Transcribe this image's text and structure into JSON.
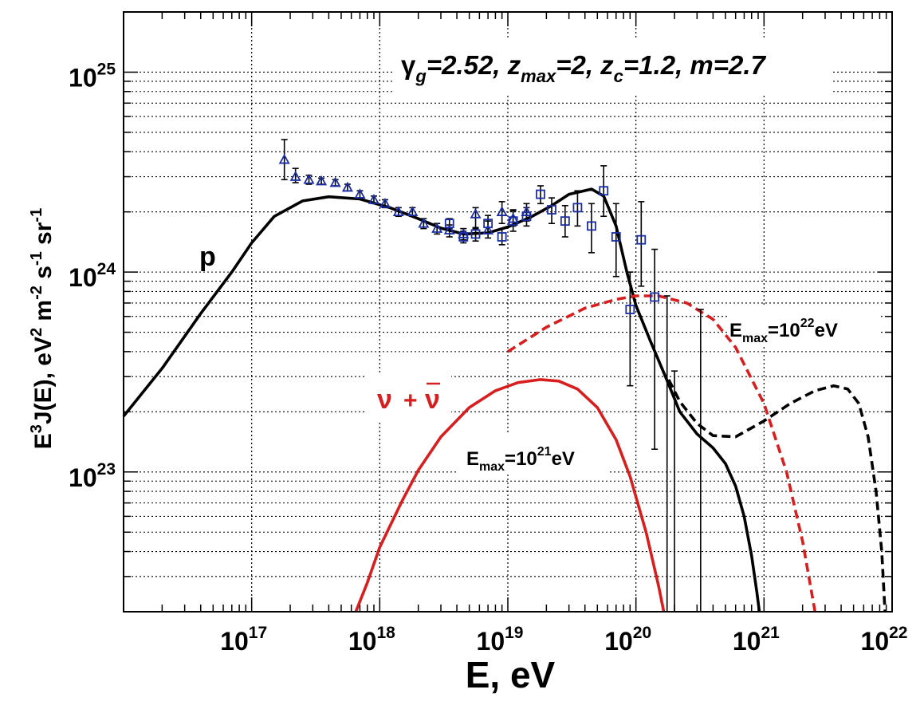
{
  "chart_data": {
    "type": "line",
    "log_x": true,
    "log_y": true,
    "xlim": [
      1e+16,
      1e+22
    ],
    "ylim": [
      2e+22,
      2e+25
    ],
    "grid": true,
    "xlabel": {
      "base": "E, eV"
    },
    "ylabel": {
      "p1": "E",
      "s1": "3",
      "p2": "J(E),  eV",
      "s2": "2",
      "p3": " m",
      "s3": "-2",
      "p4": " s",
      "s4": "-1",
      "p5": " sr",
      "s5": "-1"
    },
    "x_ticks": [
      {
        "value": 1e+17,
        "base": "10",
        "exp": "17"
      },
      {
        "value": 1e+18,
        "base": "10",
        "exp": "18"
      },
      {
        "value": 1e+19,
        "base": "10",
        "exp": "19"
      },
      {
        "value": 1e+20,
        "base": "10",
        "exp": "20"
      },
      {
        "value": 1e+21,
        "base": "10",
        "exp": "21"
      },
      {
        "value": 1e+22,
        "base": "10",
        "exp": "22"
      }
    ],
    "y_ticks": [
      {
        "value": 1e+23,
        "base": "10",
        "exp": "23"
      },
      {
        "value": 1e+24,
        "base": "10",
        "exp": "24"
      },
      {
        "value": 1e+25,
        "base": "10",
        "exp": "25"
      }
    ],
    "params_label": {
      "g": "γ",
      "g_sub": "g",
      "g_val": "=2.52, z",
      "z_sub": "max",
      "z_val": "=2, z",
      "zc_sub": "c",
      "rest": "=1.2, m=2.7"
    },
    "annotations": {
      "p": "p",
      "nu": "ν",
      "plus": "+",
      "nubar": "ν",
      "emax21": {
        "a": "E",
        "sub": "max",
        "b": "=10",
        "sup": "21",
        "c": "eV"
      },
      "emax22": {
        "a": "E",
        "sub": "max",
        "b": "=10",
        "sup": "22",
        "c": "eV"
      }
    },
    "series": [
      {
        "name": "p (Emax=1e21 eV)",
        "color": "#000000",
        "dash": "solid",
        "points": [
          [
            1e+16,
            1.9e+23
          ],
          [
            2e+16,
            3.3e+23
          ],
          [
            4e+16,
            6.2e+23
          ],
          [
            7e+16,
            1e+24
          ],
          [
            1e+17,
            1.4e+24
          ],
          [
            1.5e+17,
            1.9e+24
          ],
          [
            2.5e+17,
            2.27e+24
          ],
          [
            4e+17,
            2.38e+24
          ],
          [
            7e+17,
            2.32e+24
          ],
          [
            1.2e+18,
            2.1e+24
          ],
          [
            2e+18,
            1.85e+24
          ],
          [
            3e+18,
            1.66e+24
          ],
          [
            4.5e+18,
            1.55e+24
          ],
          [
            7e+18,
            1.57e+24
          ],
          [
            1e+19,
            1.68e+24
          ],
          [
            1.5e+19,
            1.88e+24
          ],
          [
            2.2e+19,
            2.15e+24
          ],
          [
            3e+19,
            2.45e+24
          ],
          [
            4.5e+19,
            2.6e+24
          ],
          [
            5.6e+19,
            2.4e+24
          ],
          [
            7e+19,
            1.7e+24
          ],
          [
            8.5e+19,
            1e+24
          ],
          [
            1e+20,
            6.8e+23
          ],
          [
            1.3e+20,
            4.5e+23
          ],
          [
            1.7e+20,
            3e+23
          ],
          [
            2.2e+20,
            2e+23
          ],
          [
            3e+20,
            1.55e+23
          ],
          [
            4e+20,
            1.32e+23
          ],
          [
            5e+20,
            1.1e+23
          ],
          [
            6e+20,
            8.5e+22
          ],
          [
            7e+20,
            6e+22
          ],
          [
            8e+20,
            3.8e+22
          ],
          [
            8.8e+20,
            2.5e+22
          ],
          [
            9.2e+20,
            2e+22
          ]
        ]
      },
      {
        "name": "p (Emax=1e22 eV)",
        "color": "#000000",
        "dash": "dashed",
        "points": [
          [
            1.8e+20,
            2.9e+23
          ],
          [
            2.2e+20,
            2.25e+23
          ],
          [
            3e+20,
            1.75e+23
          ],
          [
            4e+20,
            1.52e+23
          ],
          [
            6e+20,
            1.5e+23
          ],
          [
            1e+21,
            1.8e+23
          ],
          [
            1.6e+21,
            2.2e+23
          ],
          [
            2.5e+21,
            2.55e+23
          ],
          [
            3.5e+21,
            2.7e+23
          ],
          [
            4.5e+21,
            2.6e+23
          ],
          [
            5.5e+21,
            2.2e+23
          ],
          [
            6.5e+21,
            1.5e+23
          ],
          [
            7.5e+21,
            8e+22
          ],
          [
            8.3e+21,
            4e+22
          ],
          [
            8.8e+21,
            2e+22
          ]
        ]
      },
      {
        "name": "ν+ν̄ (Emax=1e21 eV)",
        "color": "#d81e1e",
        "dash": "solid",
        "points": [
          [
            6.5e+17,
            2e+22
          ],
          [
            8e+17,
            2.8e+22
          ],
          [
            1e+18,
            4.2e+22
          ],
          [
            1.5e+18,
            7.2e+22
          ],
          [
            2e+18,
            1.02e+23
          ],
          [
            3e+18,
            1.5e+23
          ],
          [
            5e+18,
            2.1e+23
          ],
          [
            8e+18,
            2.55e+23
          ],
          [
            1.2e+19,
            2.8e+23
          ],
          [
            1.8e+19,
            2.9e+23
          ],
          [
            2.5e+19,
            2.85e+23
          ],
          [
            3.5e+19,
            2.6e+23
          ],
          [
            5e+19,
            2.1e+23
          ],
          [
            7e+19,
            1.45e+23
          ],
          [
            9e+19,
            9.5e+22
          ],
          [
            1.2e+20,
            5e+22
          ],
          [
            1.5e+20,
            2.7e+22
          ],
          [
            1.65e+20,
            2e+22
          ]
        ]
      },
      {
        "name": "ν+ν̄ (Emax=1e22 eV)",
        "color": "#d81e1e",
        "dash": "dashed",
        "points": [
          [
            1e+19,
            4e+23
          ],
          [
            2e+19,
            5.3e+23
          ],
          [
            4e+19,
            6.6e+23
          ],
          [
            7e+19,
            7.3e+23
          ],
          [
            1e+20,
            7.6e+23
          ],
          [
            1.5e+20,
            7.6e+23
          ],
          [
            2.5e+20,
            7e+23
          ],
          [
            4e+20,
            5.8e+23
          ],
          [
            6e+20,
            4.2e+23
          ],
          [
            1e+21,
            2.2e+23
          ],
          [
            1.5e+21,
            1e+23
          ],
          [
            2e+21,
            4.5e+22
          ],
          [
            2.5e+21,
            2e+22
          ]
        ]
      }
    ],
    "data_triangles": {
      "name": "data (triangles)",
      "color": "#1a2da8",
      "points": [
        [
          1.8e+17,
          3.65e+24,
          4.6e+24,
          2.9e+24
        ],
        [
          2.2e+17,
          3e+24,
          3.3e+24,
          2.8e+24
        ],
        [
          2.8e+17,
          2.9e+24,
          3.05e+24,
          2.75e+24
        ],
        [
          3.5e+17,
          2.85e+24,
          2.95e+24,
          2.75e+24
        ],
        [
          4.5e+17,
          2.8e+24,
          2.9e+24,
          2.7e+24
        ],
        [
          5.6e+17,
          2.65e+24,
          2.75e+24,
          2.55e+24
        ],
        [
          7e+17,
          2.45e+24,
          2.55e+24,
          2.35e+24
        ],
        [
          9e+17,
          2.3e+24,
          2.4e+24,
          2.2e+24
        ],
        [
          1.1e+18,
          2.2e+24,
          2.3e+24,
          2.1e+24
        ],
        [
          1.4e+18,
          2e+24,
          2.1e+24,
          1.9e+24
        ],
        [
          1.8e+18,
          2e+24,
          2.1e+24,
          1.9e+24
        ],
        [
          2.2e+18,
          1.75e+24,
          1.85e+24,
          1.65e+24
        ],
        [
          2.8e+18,
          1.65e+24,
          1.75e+24,
          1.55e+24
        ],
        [
          3.5e+18,
          1.62e+24,
          1.72e+24,
          1.5e+24
        ],
        [
          4.5e+18,
          1.55e+24,
          1.65e+24,
          1.45e+24
        ],
        [
          5.6e+18,
          1.95e+24,
          2.1e+24,
          1.65e+24
        ],
        [
          7e+18,
          1.62e+24,
          1.8e+24,
          1.48e+24
        ],
        [
          9e+18,
          2e+24,
          2.25e+24,
          1.75e+24
        ],
        [
          1.1e+19,
          1.85e+24,
          2.05e+24,
          1.7e+24
        ],
        [
          1.4e+19,
          2e+24,
          2.2e+24,
          1.8e+24
        ]
      ]
    },
    "data_squares": {
      "name": "data (squares)",
      "color": "#1a2da8",
      "points": [
        [
          3.5e+18,
          1.75e+24,
          1.85e+24,
          1.65e+24
        ],
        [
          4.5e+18,
          1.5e+24,
          1.6e+24,
          1.4e+24
        ],
        [
          5.6e+18,
          1.55e+24,
          1.67e+24,
          1.43e+24
        ],
        [
          7e+18,
          1.75e+24,
          1.92e+24,
          1.58e+24
        ],
        [
          9e+18,
          1.5e+24,
          1.65e+24,
          1.37e+24
        ],
        [
          1.1e+19,
          1.8e+24,
          2.02e+24,
          1.6e+24
        ],
        [
          1.4e+19,
          1.9e+24,
          2.1e+24,
          1.7e+24
        ],
        [
          1.8e+19,
          2.45e+24,
          2.7e+24,
          2.2e+24
        ],
        [
          2.2e+19,
          2.05e+24,
          2.35e+24,
          1.75e+24
        ],
        [
          2.8e+19,
          1.8e+24,
          2.15e+24,
          1.5e+24
        ],
        [
          3.5e+19,
          2.1e+24,
          2.55e+24,
          1.7e+24
        ],
        [
          4.5e+19,
          1.7e+24,
          2.2e+24,
          1.25e+24
        ],
        [
          5.6e+19,
          2.55e+24,
          3.4e+24,
          1.9e+24
        ],
        [
          7e+19,
          1.5e+24,
          2.2e+24,
          9.5e+23
        ],
        [
          9e+19,
          6.5e+23,
          1e+24,
          2.7e+23
        ],
        [
          1.1e+20,
          1.45e+24,
          2.25e+24,
          8.5e+23
        ],
        [
          1.4e+20,
          7.5e+23,
          1.3e+24,
          1.3e+23
        ]
      ]
    },
    "upper_limits": [
      {
        "x": 1.75e+20,
        "top": 7.6e+23
      },
      {
        "x": 2e+20,
        "top": 3.2e+23
      },
      {
        "x": 3.2e+20,
        "top": 6.5e+23
      }
    ]
  }
}
